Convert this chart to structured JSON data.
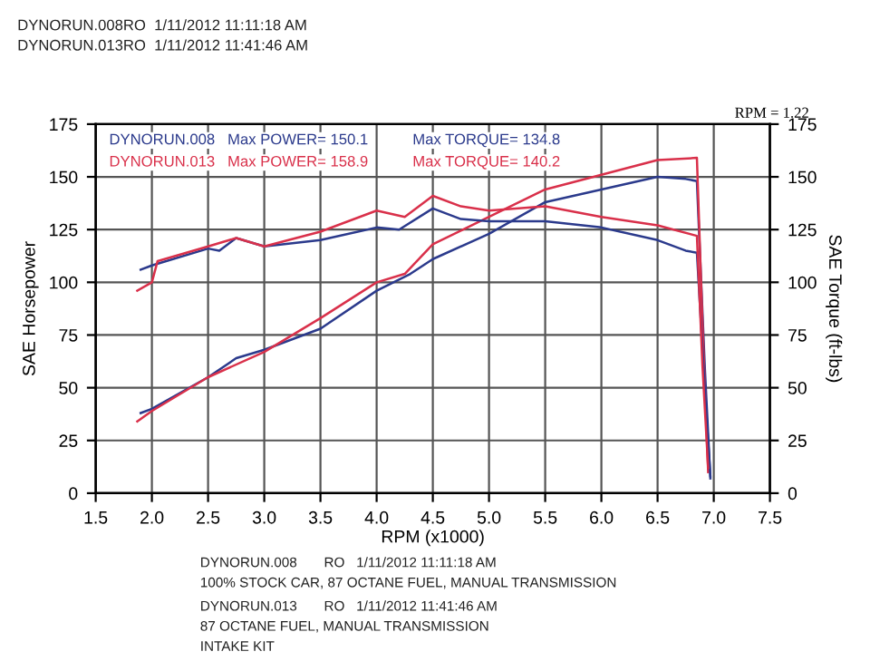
{
  "chart_data": {
    "type": "line",
    "xlabel": "RPM (x1000)",
    "ylabel": "SAE Horsepower",
    "y2label": "SAE Torque (ft-lbs)",
    "xlim": [
      1.5,
      7.5
    ],
    "xticks": [
      {
        "value": 1.5,
        "label": "1.5"
      },
      {
        "value": 2,
        "label": "2.0"
      },
      {
        "value": 2.5,
        "label": "2.5"
      },
      {
        "value": 3,
        "label": "3.0"
      },
      {
        "value": 3.5,
        "label": "3.5"
      },
      {
        "value": 4,
        "label": "4.0"
      },
      {
        "value": 4.5,
        "label": "4.5"
      },
      {
        "value": 5,
        "label": "5.0"
      },
      {
        "value": 5.5,
        "label": "5.5"
      },
      {
        "value": 6,
        "label": "6.0"
      },
      {
        "value": 6.5,
        "label": "6.5"
      },
      {
        "value": 7,
        "label": "7.0"
      },
      {
        "value": 7.5,
        "label": "7.5"
      }
    ],
    "ylim": [
      0,
      175
    ],
    "yticks": [
      0,
      25,
      50,
      75,
      100,
      125,
      150,
      175
    ],
    "y2lim": [
      0,
      175
    ],
    "y2ticks": [
      0,
      25,
      50,
      75,
      100,
      125,
      150,
      175
    ],
    "grid": true,
    "line_style": "solid",
    "marker": "none",
    "series": [
      {
        "color": "#2b3a8c",
        "x": [
          1.9,
          2.0,
          2.5,
          2.75,
          3.0,
          3.5,
          4.0,
          4.3,
          4.5,
          5.0,
          5.5,
          6.0,
          6.5,
          6.75,
          6.85,
          6.92,
          6.97
        ],
        "values": [
          38,
          40,
          55,
          64,
          68,
          78,
          96,
          104,
          111,
          123,
          138,
          144,
          150,
          149,
          148,
          60,
          7
        ]
      },
      {
        "color": "#d9304a",
        "x": [
          1.87,
          2.0,
          2.5,
          3.0,
          3.5,
          4.0,
          4.25,
          4.5,
          5.0,
          5.5,
          6.0,
          6.5,
          6.85,
          6.9,
          6.95
        ],
        "values": [
          34,
          39,
          55,
          67,
          83,
          100,
          104,
          118,
          131,
          144,
          151,
          158,
          159,
          80,
          10
        ]
      },
      {
        "axis": "y2",
        "color": "#2b3a8c",
        "x": [
          1.9,
          2.0,
          2.5,
          2.6,
          2.75,
          3.0,
          3.5,
          4.0,
          4.2,
          4.5,
          4.75,
          5.0,
          5.5,
          6.0,
          6.5,
          6.75,
          6.85,
          6.92,
          6.97
        ],
        "values": [
          106,
          108,
          116,
          115,
          121,
          117,
          120,
          126,
          125,
          135,
          130,
          129,
          129,
          126,
          120,
          115,
          114,
          50,
          8
        ]
      },
      {
        "axis": "y2",
        "color": "#d9304a",
        "x": [
          1.87,
          2.0,
          2.05,
          2.5,
          2.75,
          3.0,
          3.5,
          4.0,
          4.25,
          4.5,
          4.75,
          5.0,
          5.5,
          6.0,
          6.5,
          6.85,
          6.9,
          6.95
        ],
        "values": [
          96,
          100,
          110,
          117,
          121,
          117,
          124,
          134,
          131,
          141,
          136,
          134,
          136,
          131,
          127,
          122,
          60,
          12
        ]
      }
    ],
    "annotations": [
      "DYNORUN.008RO  1/11/2012 11:11:18 AM",
      "DYNORUN.013RO  1/11/2012 11:41:46 AM",
      "RPM = 1.22",
      "DYNORUN.008   Max POWER= 150.1",
      "DYNORUN.013   Max POWER= 158.9",
      "Max TORQUE= 134.8",
      "Max TORQUE= 140.2",
      "DYNORUN.008       RO   1/11/2012 11:11:18 AM",
      "100% STOCK CAR, 87 OCTANE FUEL, MANUAL TRANSMISSION",
      "DYNORUN.013       RO   1/11/2012 11:41:46 AM",
      "87 OCTANE FUEL, MANUAL TRANSMISSION",
      "INTAKE KIT"
    ]
  }
}
